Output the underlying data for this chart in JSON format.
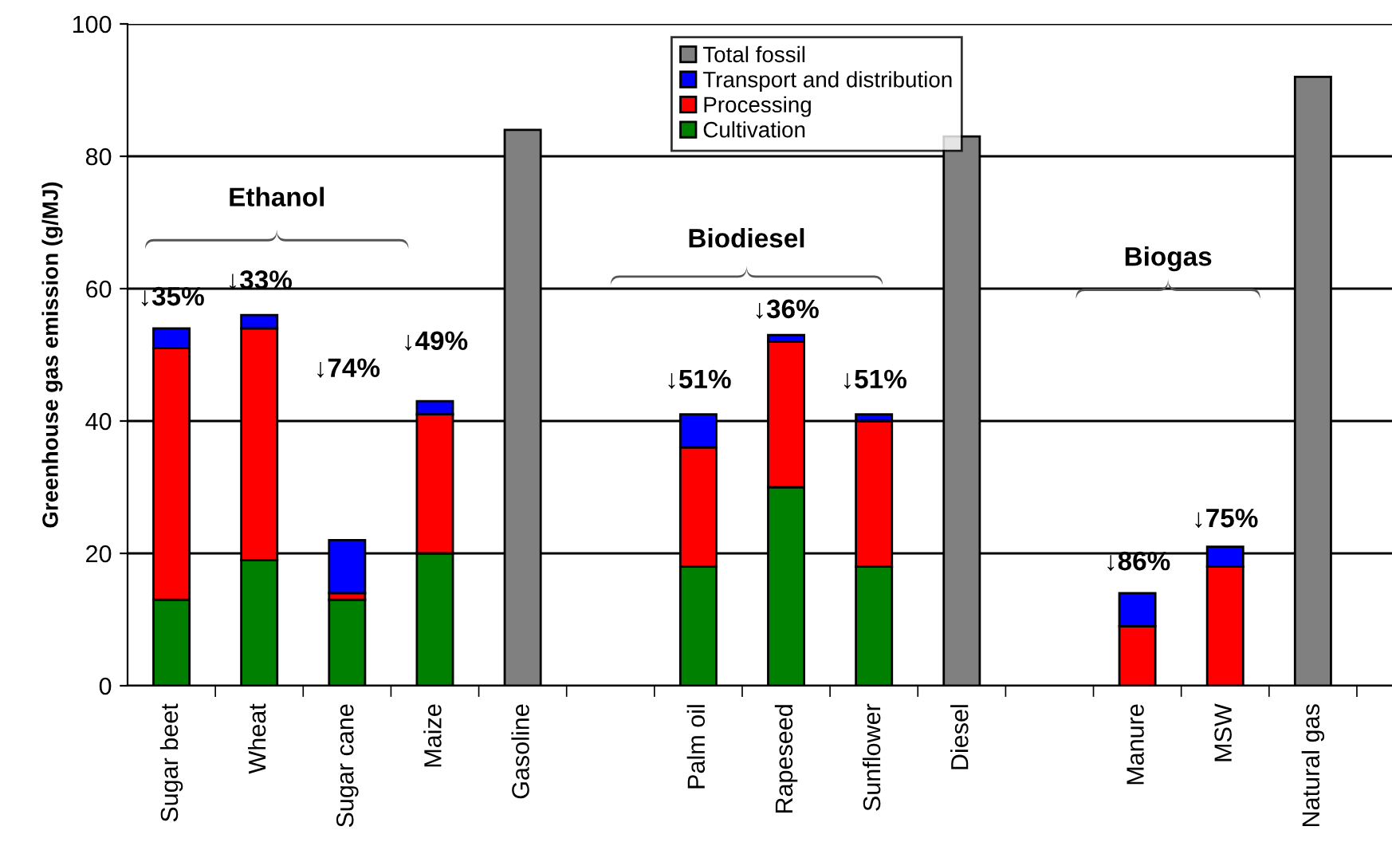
{
  "chart_data": {
    "type": "bar",
    "stacked": true,
    "ylabel": "Greenhouse gas emission (g/MJ)",
    "categories": [
      "Sugar beet",
      "Wheat",
      "Sugar cane",
      "Maize",
      "Gasoline",
      null,
      "Palm oil",
      "Rapeseed",
      "Sunflower",
      "Diesel",
      null,
      "Manure",
      "MSW",
      "Natural gas"
    ],
    "series": [
      {
        "name": "Cultivation",
        "color": "#008000",
        "values": [
          13,
          19,
          13,
          20,
          null,
          null,
          18,
          30,
          18,
          null,
          null,
          null,
          null,
          null
        ]
      },
      {
        "name": "Processing",
        "color": "#ff0000",
        "values": [
          38,
          35,
          1,
          21,
          null,
          null,
          18,
          22,
          22,
          null,
          null,
          9,
          18,
          null
        ]
      },
      {
        "name": "Transport and distribution",
        "color": "#0000ff",
        "values": [
          3,
          2,
          8,
          2,
          null,
          null,
          5,
          1,
          1,
          null,
          null,
          5,
          3,
          null
        ]
      },
      {
        "name": "Total fossil",
        "color": "#808080",
        "values": [
          null,
          null,
          null,
          null,
          84,
          null,
          null,
          null,
          null,
          83,
          null,
          null,
          null,
          92
        ]
      }
    ],
    "ylim": [
      0,
      100
    ],
    "yticks": [
      0,
      20,
      40,
      60,
      80,
      100
    ],
    "grid": "y",
    "legend": "top",
    "annotations": [
      "↓35%",
      "↓33%",
      "↓74%",
      "↓49%",
      "↓51%",
      "↓36%",
      "↓51%",
      "↓86%",
      "↓75%",
      "Ethanol",
      "Biodiesel",
      "Biogas"
    ]
  }
}
